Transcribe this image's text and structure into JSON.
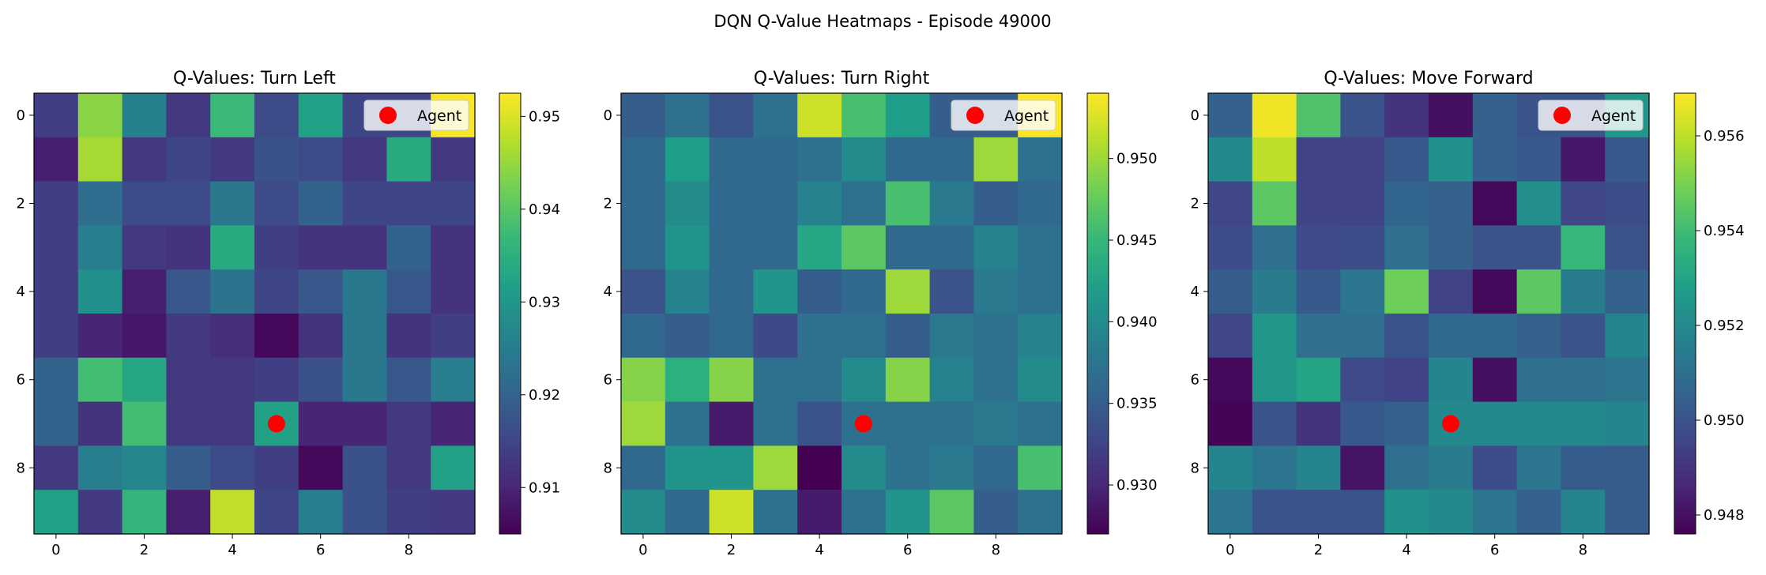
{
  "figure": {
    "title": "DQN Q-Value Heatmaps - Episode 49000"
  },
  "colors": {
    "viridis": [
      "#440154",
      "#482878",
      "#3e4989",
      "#31688e",
      "#26828e",
      "#1f9e89",
      "#35b779",
      "#6ece58",
      "#b5de2b",
      "#fde725"
    ],
    "agent": "#ff0000",
    "axes": "#000000"
  },
  "chart_data": [
    {
      "type": "heatmap",
      "title": "Q-Values: Turn Left",
      "legend": {
        "label": "Agent",
        "position": "upper-right"
      },
      "agent_marker": {
        "x": 5,
        "y": 7
      },
      "x_ticks": [
        0,
        2,
        4,
        6,
        8
      ],
      "y_ticks": [
        0,
        2,
        4,
        6,
        8
      ],
      "colorbar": {
        "min": 0.905,
        "max": 0.9525,
        "ticks": [
          0.91,
          0.92,
          0.93,
          0.94,
          0.95
        ],
        "tick_labels": [
          "0.91",
          "0.92",
          "0.93",
          "0.94",
          "0.95"
        ]
      },
      "values": [
        [
          0.914,
          0.944,
          0.926,
          0.913,
          0.937,
          0.916,
          0.932,
          0.915,
          0.915,
          0.952
        ],
        [
          0.909,
          0.946,
          0.913,
          0.915,
          0.913,
          0.917,
          0.916,
          0.913,
          0.934,
          0.913
        ],
        [
          0.914,
          0.922,
          0.916,
          0.916,
          0.924,
          0.916,
          0.92,
          0.915,
          0.915,
          0.915
        ],
        [
          0.914,
          0.925,
          0.913,
          0.912,
          0.934,
          0.914,
          0.912,
          0.912,
          0.92,
          0.912
        ],
        [
          0.914,
          0.929,
          0.909,
          0.918,
          0.923,
          0.915,
          0.918,
          0.924,
          0.918,
          0.912
        ],
        [
          0.914,
          0.91,
          0.908,
          0.913,
          0.911,
          0.906,
          0.912,
          0.924,
          0.912,
          0.914
        ],
        [
          0.92,
          0.938,
          0.933,
          0.913,
          0.913,
          0.914,
          0.917,
          0.924,
          0.918,
          0.925
        ],
        [
          0.92,
          0.912,
          0.938,
          0.913,
          0.913,
          0.932,
          0.91,
          0.91,
          0.913,
          0.91
        ],
        [
          0.913,
          0.925,
          0.927,
          0.919,
          0.916,
          0.914,
          0.906,
          0.917,
          0.913,
          0.932
        ],
        [
          0.932,
          0.913,
          0.936,
          0.909,
          0.948,
          0.915,
          0.925,
          0.917,
          0.914,
          0.913
        ]
      ]
    },
    {
      "type": "heatmap",
      "title": "Q-Values: Turn Right",
      "legend": {
        "label": "Agent",
        "position": "upper-right"
      },
      "agent_marker": {
        "x": 5,
        "y": 7
      },
      "x_ticks": [
        0,
        2,
        4,
        6,
        8
      ],
      "y_ticks": [
        0,
        2,
        4,
        6,
        8
      ],
      "colorbar": {
        "min": 0.927,
        "max": 0.954,
        "ticks": [
          0.93,
          0.935,
          0.94,
          0.945,
          0.95
        ],
        "tick_labels": [
          "0.930",
          "0.935",
          "0.940",
          "0.945",
          "0.950"
        ]
      },
      "values": [
        [
          0.935,
          0.937,
          0.934,
          0.937,
          0.952,
          0.946,
          0.942,
          0.935,
          0.935,
          0.954
        ],
        [
          0.936,
          0.942,
          0.936,
          0.936,
          0.937,
          0.94,
          0.936,
          0.936,
          0.95,
          0.937
        ],
        [
          0.936,
          0.94,
          0.936,
          0.936,
          0.939,
          0.937,
          0.946,
          0.938,
          0.935,
          0.936
        ],
        [
          0.936,
          0.941,
          0.936,
          0.936,
          0.943,
          0.947,
          0.936,
          0.936,
          0.939,
          0.937
        ],
        [
          0.934,
          0.939,
          0.936,
          0.941,
          0.935,
          0.936,
          0.95,
          0.934,
          0.938,
          0.937
        ],
        [
          0.936,
          0.935,
          0.936,
          0.933,
          0.937,
          0.937,
          0.935,
          0.938,
          0.937,
          0.939
        ],
        [
          0.949,
          0.944,
          0.949,
          0.937,
          0.937,
          0.94,
          0.949,
          0.939,
          0.937,
          0.94
        ],
        [
          0.95,
          0.937,
          0.929,
          0.937,
          0.934,
          0.937,
          0.937,
          0.937,
          0.938,
          0.937
        ],
        [
          0.936,
          0.941,
          0.941,
          0.95,
          0.927,
          0.94,
          0.937,
          0.938,
          0.936,
          0.946
        ],
        [
          0.94,
          0.936,
          0.952,
          0.937,
          0.929,
          0.937,
          0.941,
          0.947,
          0.935,
          0.937
        ]
      ]
    },
    {
      "type": "heatmap",
      "title": "Q-Values: Move Forward",
      "legend": {
        "label": "Agent",
        "position": "upper-right"
      },
      "agent_marker": {
        "x": 5,
        "y": 7
      },
      "x_ticks": [
        0,
        2,
        4,
        6,
        8
      ],
      "y_ticks": [
        0,
        2,
        4,
        6,
        8
      ],
      "colorbar": {
        "min": 0.9476,
        "max": 0.9569,
        "ticks": [
          0.948,
          0.95,
          0.952,
          0.954,
          0.956
        ],
        "tick_labels": [
          "0.948",
          "0.950",
          "0.952",
          "0.954",
          "0.956"
        ]
      },
      "values": [
        [
          0.9505,
          0.9567,
          0.9543,
          0.95,
          0.949,
          0.948,
          0.9505,
          0.95,
          0.95,
          0.9525
        ],
        [
          0.952,
          0.956,
          0.9495,
          0.9495,
          0.9502,
          0.9523,
          0.9505,
          0.9502,
          0.9482,
          0.9502
        ],
        [
          0.9496,
          0.9545,
          0.9495,
          0.9495,
          0.9506,
          0.9505,
          0.9478,
          0.9522,
          0.9496,
          0.9498
        ],
        [
          0.9498,
          0.951,
          0.9497,
          0.9498,
          0.951,
          0.9505,
          0.95,
          0.95,
          0.9538,
          0.95
        ],
        [
          0.9503,
          0.9515,
          0.9502,
          0.9512,
          0.9548,
          0.9495,
          0.9478,
          0.9545,
          0.9515,
          0.9505
        ],
        [
          0.9496,
          0.9525,
          0.951,
          0.951,
          0.95,
          0.9507,
          0.9507,
          0.9505,
          0.95,
          0.9518
        ],
        [
          0.9478,
          0.9525,
          0.953,
          0.9497,
          0.9495,
          0.9518,
          0.948,
          0.951,
          0.951,
          0.9512
        ],
        [
          0.9477,
          0.95,
          0.949,
          0.9502,
          0.9505,
          0.952,
          0.952,
          0.952,
          0.952,
          0.9518
        ],
        [
          0.9518,
          0.9512,
          0.9518,
          0.9481,
          0.951,
          0.9515,
          0.9498,
          0.9512,
          0.9503,
          0.9503
        ],
        [
          0.9512,
          0.95,
          0.95,
          0.95,
          0.9523,
          0.952,
          0.9512,
          0.9505,
          0.9518,
          0.9503
        ]
      ]
    }
  ]
}
